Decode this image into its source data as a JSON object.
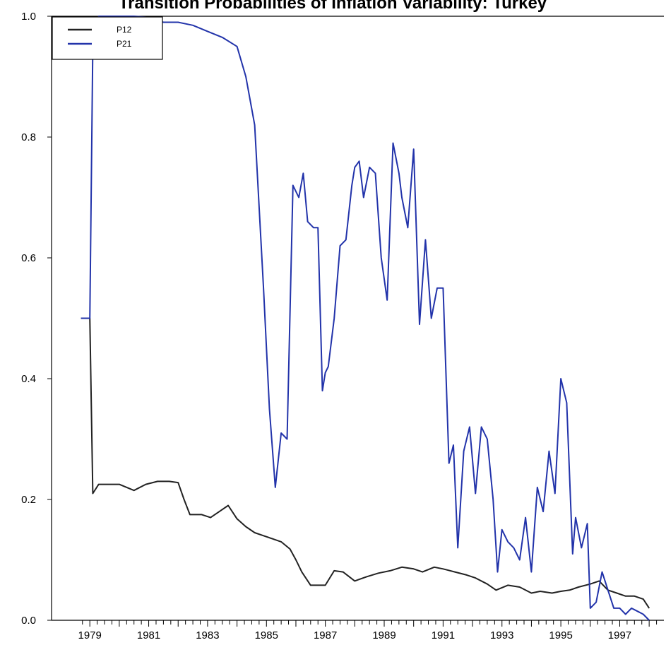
{
  "chart_data": {
    "type": "line",
    "title": "Transition Probabilities of Inflation Variability: Turkey",
    "xlabel": "",
    "ylabel": "",
    "ylim": [
      0,
      1
    ],
    "yticks": [
      "0.0",
      "0.2",
      "0.4",
      "0.6",
      "0.8",
      "1.0"
    ],
    "xticks": [
      "1979",
      "1981",
      "1983",
      "1985",
      "1987",
      "1989",
      "1991",
      "1993",
      "1995",
      "1997"
    ],
    "xlim": [
      1977.7,
      1998.5
    ],
    "legend": {
      "position": "top-left"
    },
    "grid": false,
    "series": [
      {
        "name": "P12",
        "color": "#222222",
        "x": [
          1978.7,
          1979.0,
          1979.1,
          1979.3,
          1979.6,
          1980.0,
          1980.5,
          1980.9,
          1981.3,
          1981.7,
          1982.0,
          1982.2,
          1982.4,
          1982.8,
          1983.1,
          1983.4,
          1983.7,
          1984.0,
          1984.3,
          1984.6,
          1984.9,
          1985.2,
          1985.5,
          1985.8,
          1986.0,
          1986.2,
          1986.5,
          1986.8,
          1987.0,
          1987.3,
          1987.6,
          1988.0,
          1988.4,
          1988.8,
          1989.2,
          1989.6,
          1990.0,
          1990.3,
          1990.7,
          1991.0,
          1991.4,
          1991.8,
          1992.1,
          1992.5,
          1992.8,
          1993.2,
          1993.6,
          1994.0,
          1994.3,
          1994.7,
          1995.0,
          1995.3,
          1995.6,
          1996.0,
          1996.3,
          1996.6,
          1996.9,
          1997.2,
          1997.5,
          1997.8,
          1998.0
        ],
        "values": [
          0.5,
          0.5,
          0.21,
          0.225,
          0.225,
          0.225,
          0.215,
          0.225,
          0.23,
          0.23,
          0.228,
          0.2,
          0.175,
          0.175,
          0.17,
          0.18,
          0.19,
          0.168,
          0.155,
          0.145,
          0.14,
          0.135,
          0.13,
          0.118,
          0.1,
          0.08,
          0.058,
          0.058,
          0.058,
          0.082,
          0.08,
          0.065,
          0.072,
          0.078,
          0.082,
          0.088,
          0.085,
          0.08,
          0.088,
          0.085,
          0.08,
          0.075,
          0.07,
          0.06,
          0.05,
          0.058,
          0.055,
          0.045,
          0.048,
          0.045,
          0.048,
          0.05,
          0.055,
          0.06,
          0.065,
          0.05,
          0.045,
          0.04,
          0.04,
          0.035,
          0.02
        ]
      },
      {
        "name": "P21",
        "color": "#2233aa",
        "x": [
          1978.7,
          1979.0,
          1979.1,
          1979.3,
          1979.6,
          1980.0,
          1980.5,
          1981.0,
          1981.5,
          1982.0,
          1982.5,
          1983.0,
          1983.5,
          1984.0,
          1984.3,
          1984.6,
          1984.9,
          1985.1,
          1985.3,
          1985.5,
          1985.7,
          1985.9,
          1986.1,
          1986.25,
          1986.4,
          1986.6,
          1986.75,
          1986.9,
          1987.0,
          1987.1,
          1987.3,
          1987.5,
          1987.7,
          1987.9,
          1988.0,
          1988.15,
          1988.3,
          1988.5,
          1988.7,
          1988.9,
          1989.1,
          1989.3,
          1989.5,
          1989.6,
          1989.8,
          1990.0,
          1990.2,
          1990.4,
          1990.6,
          1990.8,
          1991.0,
          1991.2,
          1991.35,
          1991.5,
          1991.7,
          1991.9,
          1992.1,
          1992.3,
          1992.5,
          1992.7,
          1992.85,
          1993.0,
          1993.2,
          1993.4,
          1993.6,
          1993.8,
          1994.0,
          1994.2,
          1994.4,
          1994.6,
          1994.8,
          1995.0,
          1995.2,
          1995.4,
          1995.5,
          1995.7,
          1995.9,
          1996.0,
          1996.2,
          1996.4,
          1996.6,
          1996.8,
          1997.0,
          1997.2,
          1997.4,
          1997.6,
          1997.8,
          1998.0
        ],
        "values": [
          0.5,
          0.5,
          0.95,
          1.0,
          1.0,
          1.0,
          1.0,
          0.998,
          0.99,
          0.99,
          0.985,
          0.975,
          0.965,
          0.95,
          0.9,
          0.82,
          0.55,
          0.35,
          0.22,
          0.31,
          0.3,
          0.72,
          0.7,
          0.74,
          0.66,
          0.65,
          0.65,
          0.38,
          0.41,
          0.42,
          0.5,
          0.62,
          0.63,
          0.72,
          0.75,
          0.76,
          0.7,
          0.75,
          0.74,
          0.6,
          0.53,
          0.79,
          0.74,
          0.7,
          0.65,
          0.78,
          0.49,
          0.63,
          0.5,
          0.55,
          0.55,
          0.26,
          0.29,
          0.12,
          0.28,
          0.32,
          0.21,
          0.32,
          0.3,
          0.2,
          0.08,
          0.15,
          0.13,
          0.12,
          0.1,
          0.17,
          0.08,
          0.22,
          0.18,
          0.28,
          0.21,
          0.4,
          0.36,
          0.11,
          0.17,
          0.12,
          0.16,
          0.02,
          0.03,
          0.08,
          0.05,
          0.02,
          0.02,
          0.01,
          0.02,
          0.015,
          0.01,
          0.0
        ]
      }
    ]
  }
}
